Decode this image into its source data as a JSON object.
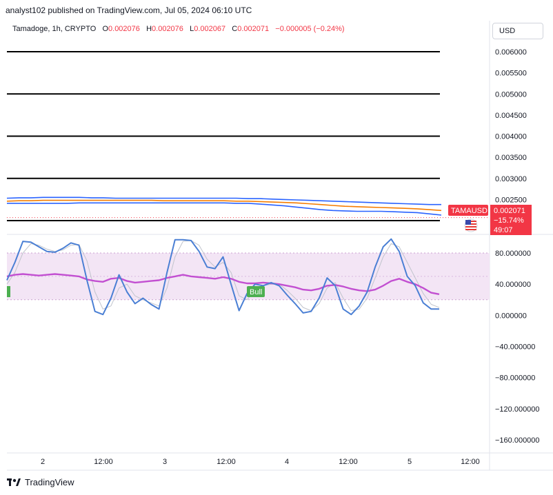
{
  "header": {
    "published": "analyst102 published on TradingView.com, Jul 05, 2024 06:10 UTC"
  },
  "legend": {
    "symbol": "Tamadoge, 1h, CRYPTO",
    "o_label": "O",
    "o_value": "0.002076",
    "h_label": "H",
    "h_value": "0.002076",
    "l_label": "L",
    "l_value": "0.002067",
    "c_label": "C",
    "c_value": "0.002071",
    "change": "−0.000005 (−0.24%)"
  },
  "currency_button": "USD",
  "price_badge": {
    "symbol": "TAMAUSD",
    "price": "0.002071",
    "change_pct": "−15.74%",
    "countdown": "49:07"
  },
  "bull_label": "Bull",
  "footer": {
    "brand": "TradingView"
  },
  "colors": {
    "upper_band": "#2962ff",
    "lower_band": "#2962ff",
    "middle_line": "#f57c00",
    "stoch_k": "#4a7fd4",
    "rsi": "#c24fd1",
    "band_fill": "#f3e5f5",
    "badge": "#f23645",
    "bull": "#4caf50"
  },
  "chart_data": [
    {
      "type": "line",
      "name": "price_pane",
      "y_ticks": [
        "0.006000",
        "0.005500",
        "0.005000",
        "0.004500",
        "0.004000",
        "0.003500",
        "0.003000",
        "0.002500"
      ],
      "ylim": [
        0.0019,
        0.0061
      ],
      "horizontal_levels": [
        0.006,
        0.005,
        0.004,
        0.003,
        0.002
      ],
      "x": [
        0,
        1,
        2,
        3,
        4,
        5,
        6,
        7,
        8,
        9,
        10,
        11,
        12,
        13,
        14,
        15,
        16,
        17,
        18,
        19,
        20,
        21,
        22,
        23,
        24,
        25,
        26,
        27,
        28,
        29,
        30,
        31,
        32,
        33,
        34,
        35,
        36
      ],
      "series": [
        {
          "role": "upper_band",
          "values": [
            0.00253,
            0.00254,
            0.00254,
            0.00255,
            0.00255,
            0.00255,
            0.00255,
            0.00254,
            0.00254,
            0.00253,
            0.00253,
            0.00253,
            0.00253,
            0.00253,
            0.00253,
            0.00253,
            0.00253,
            0.00253,
            0.00253,
            0.00253,
            0.00252,
            0.00252,
            0.00251,
            0.0025,
            0.00249,
            0.00248,
            0.00247,
            0.00246,
            0.00245,
            0.00244,
            0.00243,
            0.00242,
            0.00241,
            0.0024,
            0.00239,
            0.00238,
            0.00238
          ]
        },
        {
          "role": "middle",
          "values": [
            0.00246,
            0.00247,
            0.00247,
            0.00248,
            0.00248,
            0.00248,
            0.00248,
            0.00248,
            0.00248,
            0.00248,
            0.00248,
            0.00248,
            0.00248,
            0.00247,
            0.00247,
            0.00247,
            0.00247,
            0.00247,
            0.00247,
            0.00246,
            0.00246,
            0.00245,
            0.00244,
            0.00243,
            0.00242,
            0.0024,
            0.00238,
            0.00236,
            0.00234,
            0.00233,
            0.00232,
            0.00231,
            0.0023,
            0.00229,
            0.00228,
            0.00226,
            0.00224
          ]
        },
        {
          "role": "lower_band",
          "values": [
            0.00241,
            0.00241,
            0.00241,
            0.00241,
            0.00241,
            0.00241,
            0.00242,
            0.00242,
            0.00242,
            0.00242,
            0.00242,
            0.00242,
            0.00242,
            0.00242,
            0.00242,
            0.00242,
            0.00242,
            0.00242,
            0.00242,
            0.00241,
            0.00241,
            0.00239,
            0.00237,
            0.00235,
            0.00232,
            0.00229,
            0.00226,
            0.00224,
            0.00223,
            0.00222,
            0.00222,
            0.00222,
            0.00221,
            0.0022,
            0.00219,
            0.00216,
            0.00213
          ]
        }
      ],
      "last_price": 0.002071
    },
    {
      "type": "line",
      "name": "oscillator_pane",
      "y_ticks": [
        "80.000000",
        "40.000000",
        "0.000000",
        "−40.000000",
        "−80.000000",
        "−120.000000",
        "−160.000000"
      ],
      "ylim": [
        -180,
        100
      ],
      "band": [
        20,
        80
      ],
      "x_ticks": [
        "2",
        "12:00",
        "3",
        "12:00",
        "4",
        "12:00",
        "5",
        "12:00"
      ],
      "series": [
        {
          "role": "stoch_k",
          "values": [
            45,
            68,
            95,
            94,
            88,
            82,
            81,
            86,
            93,
            90,
            45,
            5,
            1,
            22,
            52,
            30,
            15,
            22,
            14,
            8,
            55,
            97,
            97,
            96,
            82,
            62,
            60,
            75,
            40,
            6,
            28,
            40,
            38,
            42,
            38,
            26,
            15,
            3,
            5,
            22,
            48,
            38,
            8,
            1,
            12,
            30,
            62,
            88,
            98,
            82,
            50,
            38,
            16,
            8,
            8
          ]
        },
        {
          "role": "stoch_d",
          "values": [
            40,
            55,
            80,
            92,
            90,
            85,
            82,
            84,
            90,
            91,
            70,
            30,
            8,
            12,
            35,
            40,
            25,
            20,
            16,
            12,
            35,
            75,
            95,
            96,
            90,
            72,
            62,
            68,
            55,
            25,
            20,
            32,
            38,
            40,
            40,
            32,
            22,
            10,
            6,
            15,
            35,
            42,
            22,
            6,
            8,
            22,
            48,
            75,
            92,
            88,
            68,
            48,
            28,
            14,
            10
          ]
        },
        {
          "role": "rsi",
          "values": [
            50,
            52,
            53,
            52,
            51,
            52,
            53,
            52,
            51,
            50,
            46,
            44,
            43,
            47,
            48,
            44,
            42,
            43,
            44,
            45,
            48,
            50,
            52,
            50,
            49,
            48,
            47,
            49,
            47,
            43,
            41,
            41,
            42,
            41,
            40,
            38,
            36,
            33,
            32,
            34,
            38,
            39,
            37,
            34,
            32,
            31,
            33,
            38,
            44,
            47,
            43,
            40,
            35,
            29,
            27
          ]
        }
      ],
      "annotations": [
        "Bull"
      ]
    }
  ]
}
